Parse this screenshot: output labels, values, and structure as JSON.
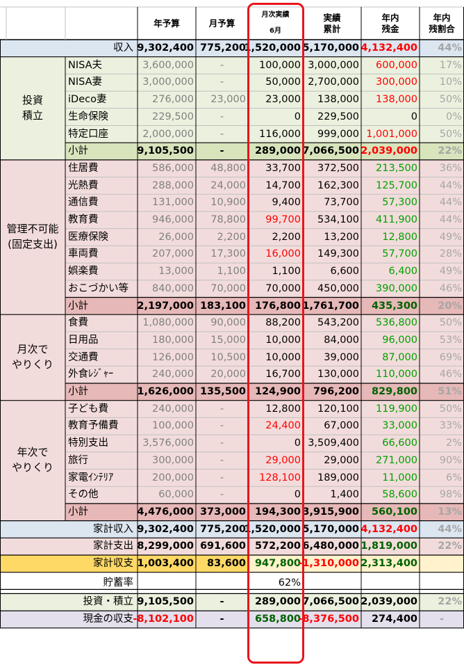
{
  "colors": {
    "income_bg": "#dce6f1",
    "invest_bg": "#ebf1de",
    "invest_sub_bg": "#d8e4bc",
    "fixed_bg": "#f2dcdb",
    "fixed_sub_bg": "#e6b8b7",
    "kakei_expense_bg": "#f2dcdb",
    "balance_bg": "#ffd966",
    "balance_light": "#fff2cc",
    "cash_bg": "#e4dfec",
    "red": "#ff0000",
    "green": "#00a000",
    "dark_green": "#006100",
    "gray": "#808080",
    "highlight": "#e8141c"
  },
  "headers": {
    "annual_budget": "年予算",
    "monthly_budget": "月予算",
    "monthly_actual": "月次実績",
    "month": "6月",
    "cumulative_line1": "実績",
    "cumulative_line2": "累計",
    "remaining_line1": "年内",
    "remaining_line2": "残金",
    "ratio_line1": "年内",
    "ratio_line2": "残割合"
  },
  "groups": {
    "invest": [
      "投資",
      "積立"
    ],
    "fixed": [
      "管理不可能",
      "(固定支出)"
    ],
    "monthly": [
      "月次で",
      "やりくり"
    ],
    "annual": [
      "年次で",
      "やりくり"
    ]
  },
  "rows": {
    "income": {
      "label": "収入",
      "annual": "9,302,400",
      "monthly": "775,200",
      "actual": "1,520,000",
      "cumulative": "5,170,000",
      "remaining": "4,132,400",
      "ratio": "44%"
    },
    "nisa_husband": {
      "label": "NISA夫",
      "annual": "3,600,000",
      "monthly": "-",
      "actual": "100,000",
      "cumulative": "3,000,000",
      "remaining": "600,000",
      "ratio": "17%"
    },
    "nisa_wife": {
      "label": "NISA妻",
      "annual": "3,000,000",
      "monthly": "-",
      "actual": "50,000",
      "cumulative": "2,700,000",
      "remaining": "300,000",
      "ratio": "10%"
    },
    "ideco_wife": {
      "label": "iDeco妻",
      "annual": "276,000",
      "monthly": "23,000",
      "actual": "23,000",
      "cumulative": "138,000",
      "remaining": "138,000",
      "ratio": "50%"
    },
    "life_insurance": {
      "label": "生命保険",
      "annual": "229,500",
      "monthly": "-",
      "actual": "0",
      "cumulative": "229,500",
      "remaining": "0",
      "ratio": "0%"
    },
    "specific_account": {
      "label": "特定口座",
      "annual": "2,000,000",
      "monthly": "-",
      "actual": "116,000",
      "cumulative": "999,000",
      "remaining": "1,001,000",
      "ratio": "50%"
    },
    "invest_subtotal": {
      "label": "小計",
      "annual": "9,105,500",
      "monthly": "-",
      "actual": "289,000",
      "cumulative": "7,066,500",
      "remaining": "2,039,000",
      "ratio": "22%"
    },
    "housing": {
      "label": "住居費",
      "annual": "586,000",
      "monthly": "48,800",
      "actual": "33,700",
      "cumulative": "372,500",
      "remaining": "213,500",
      "ratio": "36%"
    },
    "utilities": {
      "label": "光熱費",
      "annual": "288,000",
      "monthly": "24,000",
      "actual": "14,700",
      "cumulative": "162,300",
      "remaining": "125,700",
      "ratio": "44%"
    },
    "communication": {
      "label": "通信費",
      "annual": "131,000",
      "monthly": "10,900",
      "actual": "9,400",
      "cumulative": "73,700",
      "remaining": "57,300",
      "ratio": "44%"
    },
    "education": {
      "label": "教育費",
      "annual": "946,000",
      "monthly": "78,800",
      "actual": "99,700",
      "cumulative": "534,100",
      "remaining": "411,900",
      "ratio": "44%"
    },
    "medical_insurance": {
      "label": "医療保険",
      "annual": "26,000",
      "monthly": "2,200",
      "actual": "2,200",
      "cumulative": "13,200",
      "remaining": "12,800",
      "ratio": "49%"
    },
    "vehicle": {
      "label": "車両費",
      "annual": "207,000",
      "monthly": "17,300",
      "actual": "16,000",
      "cumulative": "149,300",
      "remaining": "57,700",
      "ratio": "28%"
    },
    "entertainment": {
      "label": "娯楽費",
      "annual": "13,000",
      "monthly": "1,100",
      "actual": "1,100",
      "cumulative": "6,600",
      "remaining": "6,400",
      "ratio": "49%"
    },
    "allowance": {
      "label": "おこづかい等",
      "annual": "840,000",
      "monthly": "70,000",
      "actual": "70,000",
      "cumulative": "450,000",
      "remaining": "390,000",
      "ratio": "46%"
    },
    "fixed_subtotal": {
      "label": "小計",
      "annual": "2,197,000",
      "monthly": "183,100",
      "actual": "176,800",
      "cumulative": "1,761,700",
      "remaining": "435,300",
      "ratio": "20%"
    },
    "food": {
      "label": "食費",
      "annual": "1,080,000",
      "monthly": "90,000",
      "actual": "88,200",
      "cumulative": "543,200",
      "remaining": "536,800",
      "ratio": "50%"
    },
    "daily_goods": {
      "label": "日用品",
      "annual": "180,000",
      "monthly": "15,000",
      "actual": "10,000",
      "cumulative": "84,000",
      "remaining": "96,000",
      "ratio": "53%"
    },
    "transport": {
      "label": "交通費",
      "annual": "126,000",
      "monthly": "10,500",
      "actual": "10,000",
      "cumulative": "39,000",
      "remaining": "87,000",
      "ratio": "69%"
    },
    "dining_leisure": {
      "label": "外食ﾚｼﾞｬｰ",
      "annual": "240,000",
      "monthly": "20,000",
      "actual": "16,700",
      "cumulative": "130,000",
      "remaining": "110,000",
      "ratio": "46%"
    },
    "monthly_subtotal": {
      "label": "小計",
      "annual": "1,626,000",
      "monthly": "135,500",
      "actual": "124,900",
      "cumulative": "796,200",
      "remaining": "829,800",
      "ratio": "51%"
    },
    "children": {
      "label": "子ども費",
      "annual": "240,000",
      "monthly": "-",
      "actual": "12,800",
      "cumulative": "120,100",
      "remaining": "119,900",
      "ratio": "50%"
    },
    "edu_reserve": {
      "label": "教育予備費",
      "annual": "100,000",
      "monthly": "-",
      "actual": "24,400",
      "cumulative": "67,000",
      "remaining": "33,000",
      "ratio": "33%"
    },
    "special": {
      "label": "特別支出",
      "annual": "3,576,000",
      "monthly": "-",
      "actual": "0",
      "cumulative": "3,509,400",
      "remaining": "66,600",
      "ratio": "2%"
    },
    "travel": {
      "label": "旅行",
      "annual": "300,000",
      "monthly": "-",
      "actual": "29,000",
      "cumulative": "29,000",
      "remaining": "271,000",
      "ratio": "90%"
    },
    "appliances": {
      "label": "家電ｲﾝﾃﾘｱ",
      "annual": "200,000",
      "monthly": "-",
      "actual": "128,100",
      "cumulative": "189,000",
      "remaining": "11,000",
      "ratio": "6%"
    },
    "other": {
      "label": "その他",
      "annual": "60,000",
      "monthly": "-",
      "actual": "0",
      "cumulative": "1,400",
      "remaining": "58,600",
      "ratio": "98%"
    },
    "annual_subtotal": {
      "label": "小計",
      "annual": "4,476,000",
      "monthly": "373,000",
      "actual": "194,300",
      "cumulative": "3,915,900",
      "remaining": "560,100",
      "ratio": "13%"
    },
    "household_income": {
      "label": "家計収入",
      "annual": "9,302,400",
      "monthly": "775,200",
      "actual": "1,520,000",
      "cumulative": "5,170,000",
      "remaining": "4,132,400",
      "ratio": "44%"
    },
    "household_expense": {
      "label": "家計支出",
      "annual": "8,299,000",
      "monthly": "691,600",
      "actual": "572,200",
      "cumulative": "6,480,000",
      "remaining": "1,819,000",
      "ratio": "22%"
    },
    "household_balance": {
      "label": "家計収支",
      "annual": "1,003,400",
      "monthly": "83,600",
      "actual": "947,800",
      "cumulative": "-1,310,000",
      "remaining": "2,313,400",
      "ratio": ""
    },
    "savings_rate": {
      "label": "貯蓄率",
      "annual": "",
      "monthly": "",
      "actual": "62%",
      "cumulative": "",
      "remaining": "",
      "ratio": ""
    },
    "investment_total": {
      "label": "投資・積立",
      "annual": "9,105,500",
      "monthly": "-",
      "actual": "289,000",
      "cumulative": "7,066,500",
      "remaining": "2,039,000",
      "ratio": "22%"
    },
    "cash_balance": {
      "label": "現金の収支",
      "annual": "-8,102,100",
      "monthly": "-",
      "actual": "658,800",
      "cumulative": "-8,376,500",
      "remaining": "274,400",
      "ratio": "-"
    }
  }
}
